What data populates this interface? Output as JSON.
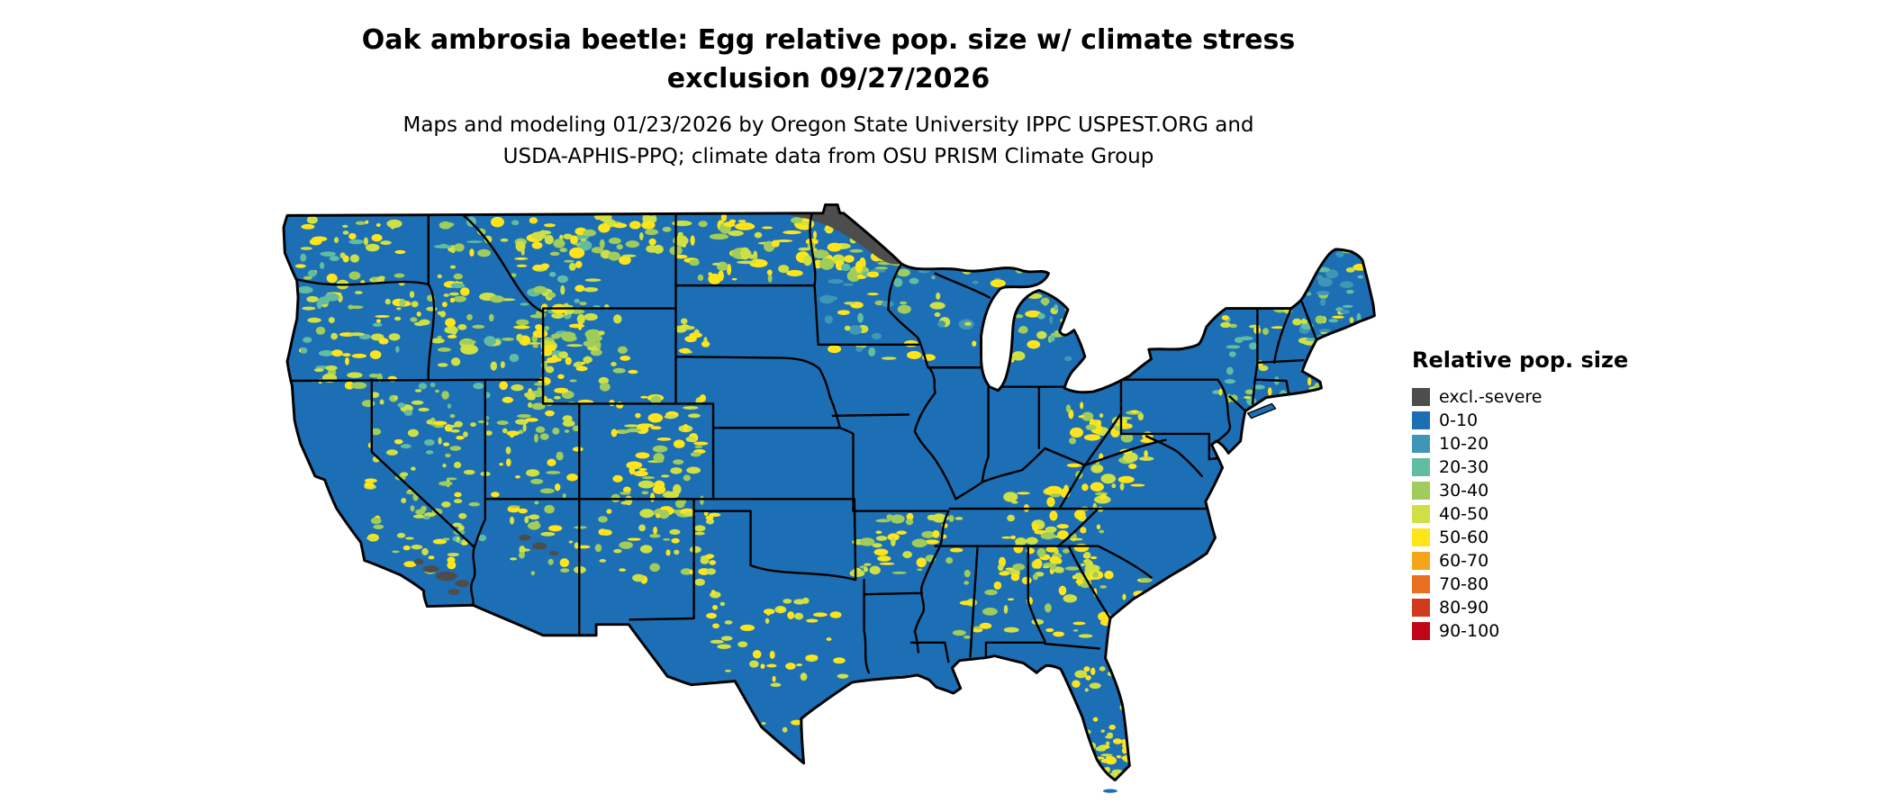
{
  "title": {
    "line1": "Oak ambrosia beetle: Egg relative pop. size w/ climate stress",
    "line2": "exclusion 09/27/2026"
  },
  "subtitle": {
    "line1": "Maps and modeling 01/23/2026 by Oregon State University IPPC USPEST.ORG and",
    "line2": "USDA-APHIS-PPQ; climate data from OSU PRISM Climate Group"
  },
  "map": {
    "region": "Continental United States",
    "base_color": "#1d6fb5",
    "exclusion_color": "#4d4d4d",
    "border_color": "#000000"
  },
  "legend": {
    "title": "Relative pop. size",
    "entries": [
      {
        "label": "excl.-severe",
        "color": "#4d4d4d"
      },
      {
        "label": "0-10",
        "color": "#1d6fb5"
      },
      {
        "label": "10-20",
        "color": "#3f97b5"
      },
      {
        "label": "20-30",
        "color": "#62bca2"
      },
      {
        "label": "30-40",
        "color": "#9fcc5a"
      },
      {
        "label": "40-50",
        "color": "#cfe044"
      },
      {
        "label": "50-60",
        "color": "#fee51b"
      },
      {
        "label": "60-70",
        "color": "#f5a519"
      },
      {
        "label": "70-80",
        "color": "#e96e1e"
      },
      {
        "label": "80-90",
        "color": "#d23a1d"
      },
      {
        "label": "90-100",
        "color": "#c00618"
      }
    ]
  }
}
